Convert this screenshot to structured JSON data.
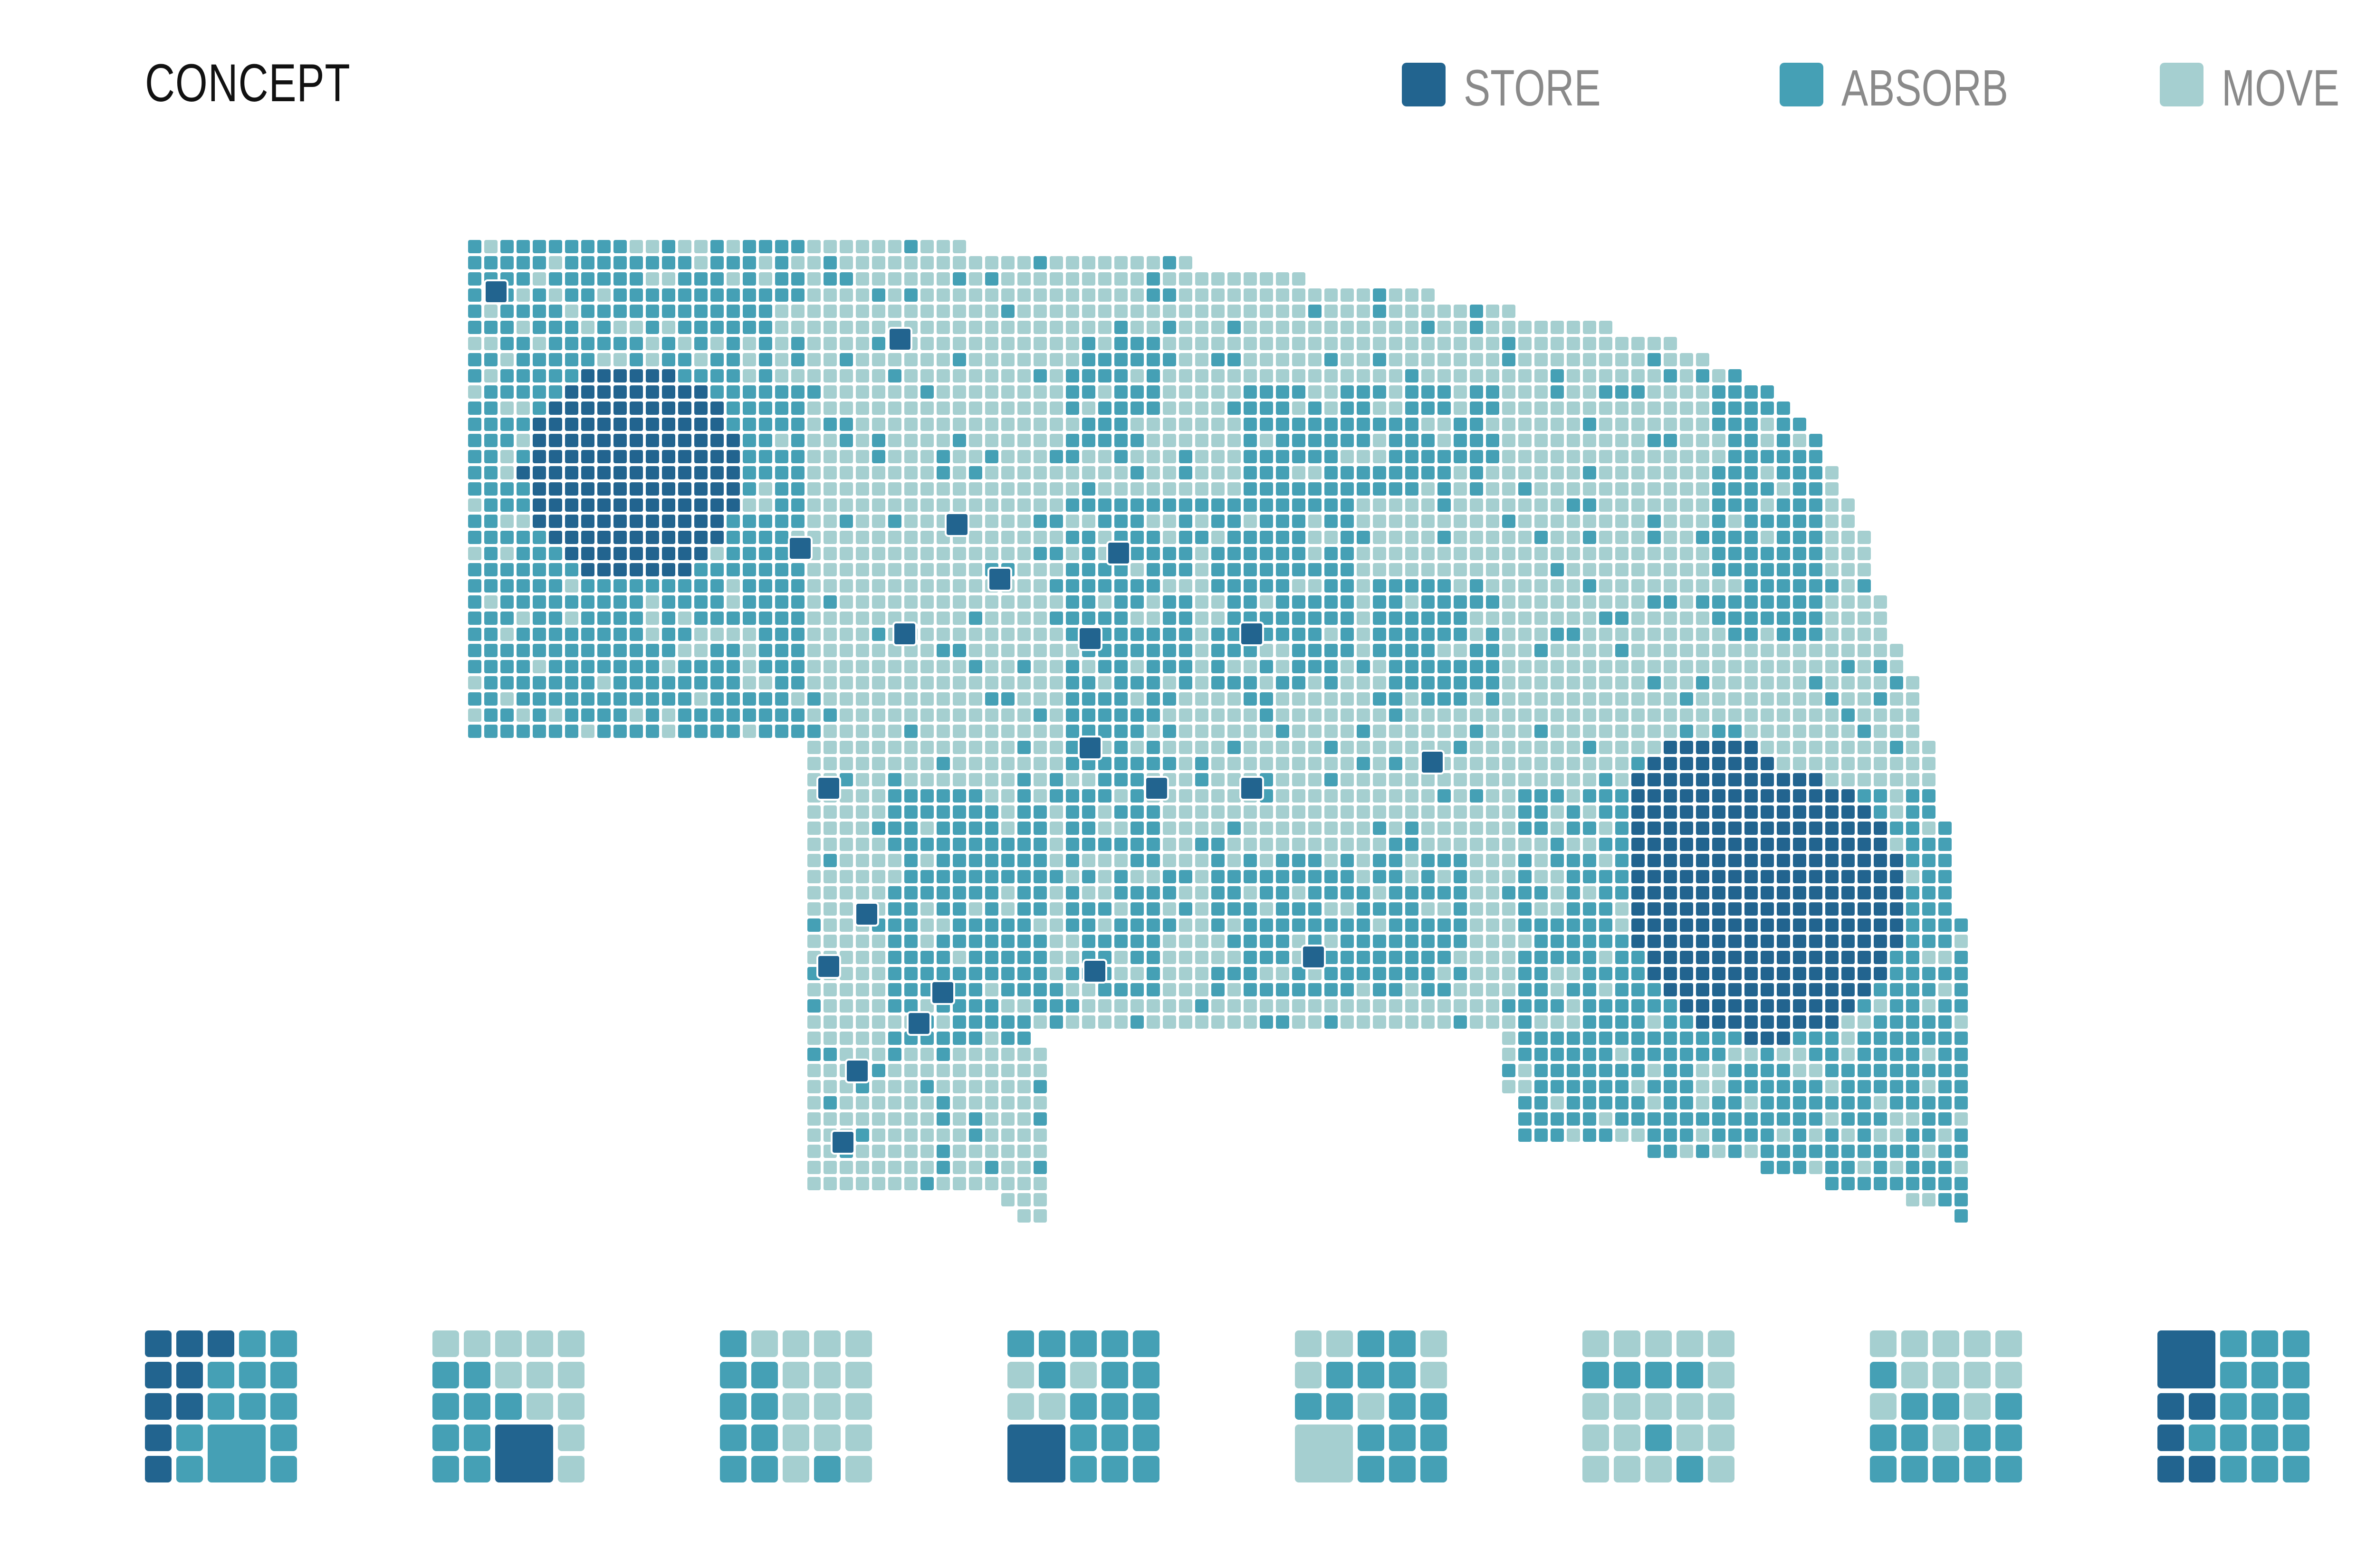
{
  "title": "CONCEPT",
  "legend": [
    {
      "label": "STORE",
      "color": "#22648f"
    },
    {
      "label": "ABSORB",
      "color": "#45a0b5"
    },
    {
      "label": "MOVE",
      "color": "#a5cfd0"
    }
  ],
  "map": {
    "description_icon": "state-grid-map",
    "cell_types": [
      "store",
      "absorb",
      "move"
    ]
  },
  "patterns": [
    {
      "name": "pattern-1"
    },
    {
      "name": "pattern-2"
    },
    {
      "name": "pattern-3"
    },
    {
      "name": "pattern-4"
    },
    {
      "name": "pattern-5"
    },
    {
      "name": "pattern-6"
    },
    {
      "name": "pattern-7"
    },
    {
      "name": "pattern-8"
    }
  ]
}
